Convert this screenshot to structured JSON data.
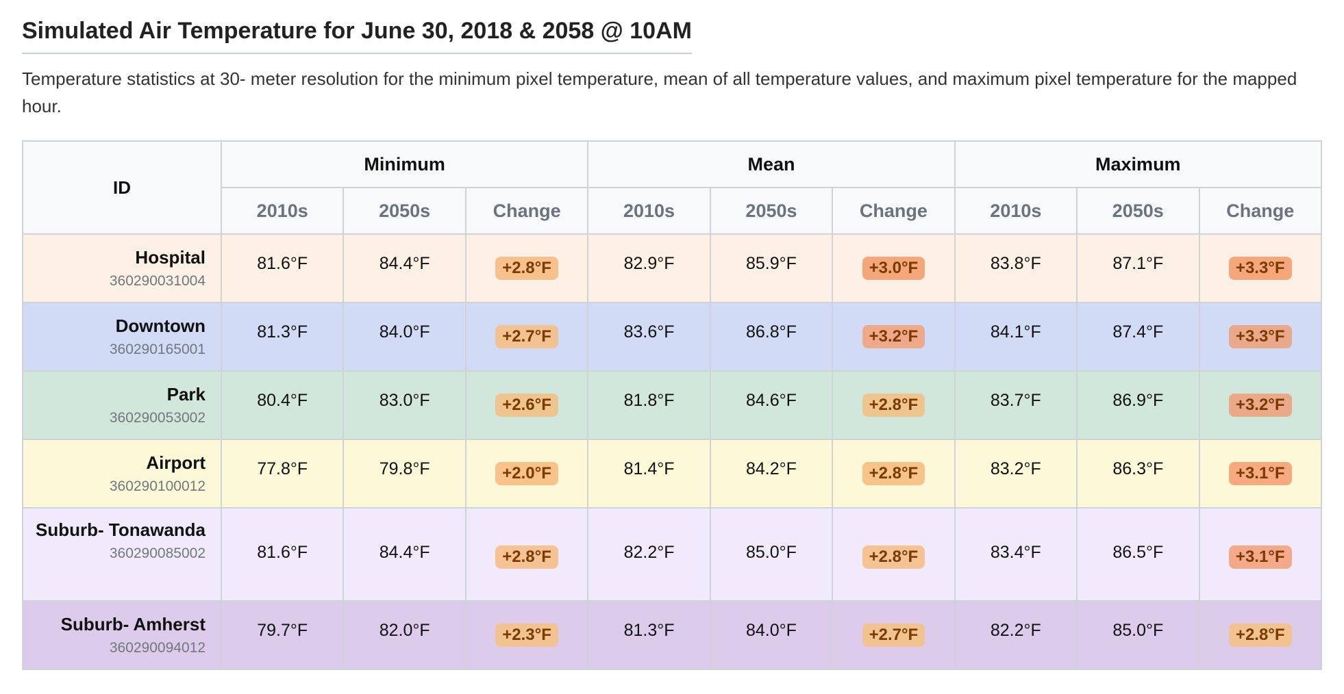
{
  "title": "Simulated Air Temperature for June 30, 2018 & 2058 @ 10AM",
  "description": "Temperature statistics at 30- meter resolution for the minimum pixel temperature, mean of all temperature values, and maximum pixel temperature for the mapped hour.",
  "table": {
    "id_header": "ID",
    "groups": [
      "Minimum",
      "Mean",
      "Maximum"
    ],
    "subheaders": [
      "2010s",
      "2050s",
      "Change"
    ],
    "rows": [
      {
        "name": "Hospital",
        "code": "360290031004",
        "bg": "#fdf0e4",
        "min": {
          "a": "81.6°F",
          "b": "84.4°F",
          "c": "+2.8°F",
          "color": "#f6c18c"
        },
        "mean": {
          "a": "82.9°F",
          "b": "85.9°F",
          "c": "+3.0°F",
          "color": "#f5a77c"
        },
        "max": {
          "a": "83.8°F",
          "b": "87.1°F",
          "c": "+3.3°F",
          "color": "#f5a77c"
        }
      },
      {
        "name": "Downtown",
        "code": "360290165001",
        "bg": "#d1dbf5",
        "min": {
          "a": "81.3°F",
          "b": "84.0°F",
          "c": "+2.7°F",
          "color": "#f2c293"
        },
        "mean": {
          "a": "83.6°F",
          "b": "86.8°F",
          "c": "+3.2°F",
          "color": "#eea88a"
        },
        "max": {
          "a": "84.1°F",
          "b": "87.4°F",
          "c": "+3.3°F",
          "color": "#eaa88a"
        }
      },
      {
        "name": "Park",
        "code": "360290053002",
        "bg": "#d1e7db",
        "min": {
          "a": "80.4°F",
          "b": "83.0°F",
          "c": "+2.6°F",
          "color": "#efc58f"
        },
        "mean": {
          "a": "81.8°F",
          "b": "84.6°F",
          "c": "+2.8°F",
          "color": "#efc58f"
        },
        "max": {
          "a": "83.7°F",
          "b": "86.9°F",
          "c": "+3.2°F",
          "color": "#eaa989"
        }
      },
      {
        "name": "Airport",
        "code": "360290100012",
        "bg": "#fdf9d8",
        "min": {
          "a": "77.8°F",
          "b": "79.8°F",
          "c": "+2.0°F",
          "color": "#f8c38a"
        },
        "mean": {
          "a": "81.4°F",
          "b": "84.2°F",
          "c": "+2.8°F",
          "color": "#f8c38a"
        },
        "max": {
          "a": "83.2°F",
          "b": "86.3°F",
          "c": "+3.1°F",
          "color": "#f7aa80"
        }
      },
      {
        "name": "Suburb- Tonawanda",
        "code": "360290085002",
        "bg": "#f1eafc",
        "min": {
          "a": "81.6°F",
          "b": "84.4°F",
          "c": "+2.8°F",
          "color": "#f5c294"
        },
        "mean": {
          "a": "82.2°F",
          "b": "85.0°F",
          "c": "+2.8°F",
          "color": "#f5c294"
        },
        "max": {
          "a": "83.4°F",
          "b": "86.5°F",
          "c": "+3.1°F",
          "color": "#f4a98a"
        }
      },
      {
        "name": "Suburb- Amherst",
        "code": "360290094012",
        "bg": "#dccbeb",
        "min": {
          "a": "79.7°F",
          "b": "82.0°F",
          "c": "+2.3°F",
          "color": "#f1c391"
        },
        "mean": {
          "a": "81.3°F",
          "b": "84.0°F",
          "c": "+2.7°F",
          "color": "#f1c391"
        },
        "max": {
          "a": "82.2°F",
          "b": "85.0°F",
          "c": "+2.8°F",
          "color": "#f1c391"
        }
      }
    ]
  }
}
